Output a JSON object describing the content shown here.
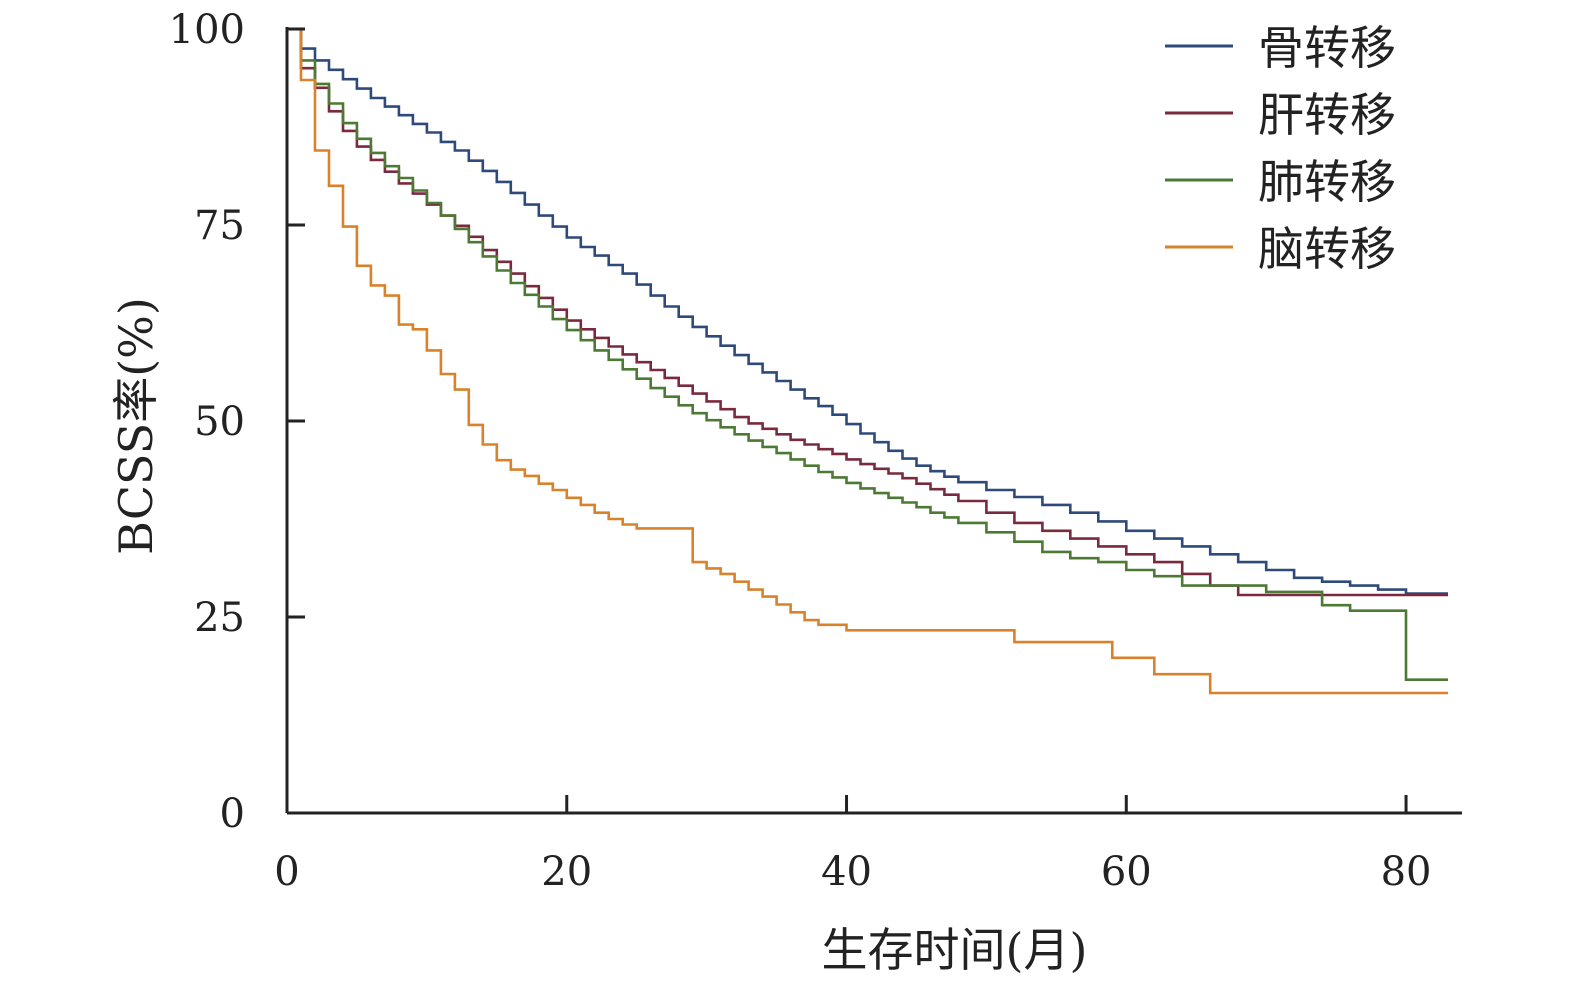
{
  "chart_data": {
    "type": "line",
    "step": true,
    "title": "",
    "xlabel": "生存时间(月)",
    "ylabel": "BCSS率(%)",
    "xlim": [
      0,
      84
    ],
    "ylim": [
      0,
      100
    ],
    "xticks": [
      0,
      20,
      40,
      60,
      80
    ],
    "yticks": [
      0,
      25,
      50,
      75,
      100
    ],
    "grid": false,
    "legend_position": "top-right",
    "series": [
      {
        "name": "骨转移",
        "color": "#2e4a7a",
        "x": [
          0.8,
          1,
          2,
          3,
          4,
          5,
          6,
          7,
          8,
          9,
          10,
          11,
          12,
          13,
          14,
          15,
          16,
          17,
          18,
          19,
          20,
          21,
          22,
          23,
          24,
          25,
          26,
          27,
          28,
          29,
          30,
          31,
          32,
          33,
          34,
          35,
          36,
          37,
          38,
          39,
          40,
          41,
          42,
          43,
          44,
          45,
          46,
          47,
          48,
          50,
          52,
          54,
          56,
          58,
          60,
          62,
          64,
          66,
          68,
          70,
          72,
          74,
          76,
          78,
          80,
          83
        ],
        "y": [
          100,
          97.5,
          96,
          94.8,
          93.6,
          92.4,
          91.2,
          90.1,
          89.0,
          87.9,
          86.8,
          85.6,
          84.5,
          83.2,
          81.9,
          80.5,
          79.1,
          77.6,
          76.2,
          74.8,
          73.4,
          72.2,
          71.1,
          69.9,
          68.8,
          67.4,
          66.0,
          64.6,
          63.3,
          62.0,
          60.8,
          59.6,
          58.4,
          57.3,
          56.2,
          55.1,
          54.0,
          52.9,
          51.9,
          50.8,
          49.6,
          48.4,
          47.3,
          46.2,
          45.2,
          44.3,
          43.6,
          42.9,
          42.2,
          41.2,
          40.3,
          39.3,
          38.3,
          37.2,
          36.0,
          35.0,
          34.0,
          33.0,
          32.0,
          31.0,
          30.0,
          29.5,
          29.0,
          28.5,
          28.0,
          28.0
        ]
      },
      {
        "name": "肝转移",
        "color": "#7a2a3e",
        "x": [
          0.8,
          1,
          2,
          3,
          4,
          5,
          6,
          7,
          8,
          9,
          10,
          11,
          12,
          13,
          14,
          15,
          16,
          17,
          18,
          19,
          20,
          21,
          22,
          23,
          24,
          25,
          26,
          27,
          28,
          29,
          30,
          31,
          32,
          33,
          34,
          35,
          36,
          37,
          38,
          39,
          40,
          41,
          42,
          43,
          44,
          45,
          46,
          47,
          48,
          50,
          52,
          54,
          56,
          58,
          60,
          62,
          64,
          66,
          68,
          70,
          72,
          74,
          76,
          78,
          80,
          83
        ],
        "y": [
          100,
          95,
          92.5,
          89.5,
          87.0,
          85.0,
          83.3,
          81.8,
          80.3,
          79.0,
          77.6,
          76.2,
          74.9,
          73.5,
          71.8,
          70.3,
          68.8,
          67.2,
          65.7,
          64.2,
          62.8,
          61.7,
          60.6,
          59.5,
          58.5,
          57.5,
          56.5,
          55.5,
          54.5,
          53.5,
          52.5,
          51.5,
          50.5,
          49.7,
          49.0,
          48.3,
          47.6,
          47.0,
          46.4,
          45.8,
          45.1,
          44.5,
          43.9,
          43.3,
          42.7,
          42.0,
          41.3,
          40.6,
          39.8,
          38.3,
          37.0,
          36.0,
          35.0,
          34.0,
          33.0,
          32.0,
          30.5,
          29.0,
          27.8,
          27.8,
          27.8,
          27.8,
          27.8,
          27.8,
          27.8,
          27.8
        ]
      },
      {
        "name": "肺转移",
        "color": "#4c7a34",
        "x": [
          0.8,
          1,
          2,
          3,
          4,
          5,
          6,
          7,
          8,
          9,
          10,
          11,
          12,
          13,
          14,
          15,
          16,
          17,
          18,
          19,
          20,
          21,
          22,
          23,
          24,
          25,
          26,
          27,
          28,
          29,
          30,
          31,
          32,
          33,
          34,
          35,
          36,
          37,
          38,
          39,
          40,
          41,
          42,
          43,
          44,
          45,
          46,
          47,
          48,
          50,
          52,
          54,
          56,
          58,
          60,
          62,
          64,
          66,
          68,
          70,
          72,
          74,
          76,
          78,
          80,
          83
        ],
        "y": [
          100,
          96,
          93,
          90.5,
          88.0,
          86.0,
          84.2,
          82.5,
          81.0,
          79.4,
          77.8,
          76.2,
          74.5,
          72.8,
          71.0,
          69.2,
          67.6,
          66.1,
          64.6,
          63.0,
          61.6,
          60.3,
          59.0,
          57.8,
          56.6,
          55.4,
          54.2,
          53.1,
          52.0,
          51.0,
          50.1,
          49.2,
          48.3,
          47.5,
          46.7,
          45.9,
          45.1,
          44.3,
          43.5,
          42.8,
          42.1,
          41.4,
          40.8,
          40.2,
          39.6,
          39.0,
          38.3,
          37.7,
          37.0,
          35.8,
          34.6,
          33.3,
          32.5,
          32.0,
          31.0,
          30.2,
          29.0,
          29.0,
          29.0,
          28.2,
          28.2,
          26.5,
          25.8,
          25.8,
          17.0,
          17.0
        ]
      },
      {
        "name": "脑转移",
        "color": "#d9822b",
        "x": [
          0.8,
          1,
          2,
          3,
          4,
          5,
          6,
          7,
          8,
          9,
          10,
          11,
          12,
          13,
          14,
          15,
          16,
          17,
          18,
          19,
          20,
          21,
          22,
          23,
          24,
          25,
          29,
          30,
          31,
          32,
          33,
          34,
          35,
          36,
          37,
          38,
          40,
          52,
          59,
          62,
          66,
          83
        ],
        "y": [
          100,
          93.5,
          84.5,
          80.0,
          74.8,
          69.8,
          67.3,
          66.0,
          62.3,
          61.7,
          59.0,
          56.0,
          54.0,
          49.5,
          47.0,
          45.0,
          43.8,
          43.0,
          42.0,
          41.2,
          40.2,
          39.3,
          38.3,
          37.5,
          36.8,
          36.3,
          32.0,
          31.2,
          30.5,
          29.5,
          28.5,
          27.6,
          26.6,
          25.6,
          24.6,
          24.0,
          23.3,
          21.8,
          19.8,
          17.7,
          15.3,
          15.3
        ]
      }
    ]
  }
}
